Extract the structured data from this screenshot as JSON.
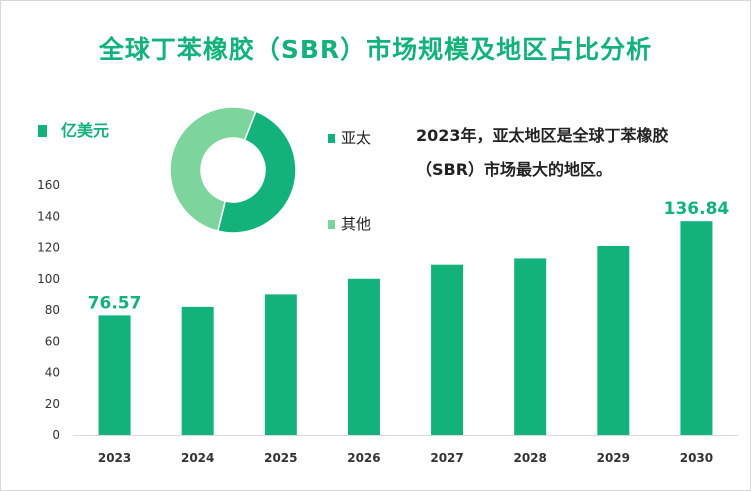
{
  "title": "全球丁苯橡胶（SBR）市场规模及地区占比分析",
  "unit_legend": "亿美元",
  "note": "2023年，亚太地区是全球丁苯橡胶（SBR）市场最大的地区。",
  "colors": {
    "primary": "#12b27a",
    "secondary": "#7ed49d"
  },
  "chart_data": [
    {
      "type": "bar",
      "categories": [
        "2023",
        "2024",
        "2025",
        "2026",
        "2027",
        "2028",
        "2029",
        "2030"
      ],
      "values": [
        76.57,
        82,
        90,
        100,
        109,
        113,
        121,
        136.84
      ],
      "data_labels": [
        "76.57",
        "",
        "",
        "",
        "",
        "",
        "",
        "136.84"
      ],
      "ylim": [
        0,
        160
      ],
      "yticks": [
        0,
        20,
        40,
        60,
        80,
        100,
        120,
        140,
        160
      ],
      "series": [
        {
          "name": "亿美元",
          "values": [
            76.57,
            82,
            90,
            100,
            109,
            113,
            121,
            136.84
          ]
        }
      ],
      "grid": false
    },
    {
      "type": "pie",
      "donut": true,
      "categories": [
        "亚太",
        "其他"
      ],
      "values": [
        48,
        52
      ]
    }
  ]
}
